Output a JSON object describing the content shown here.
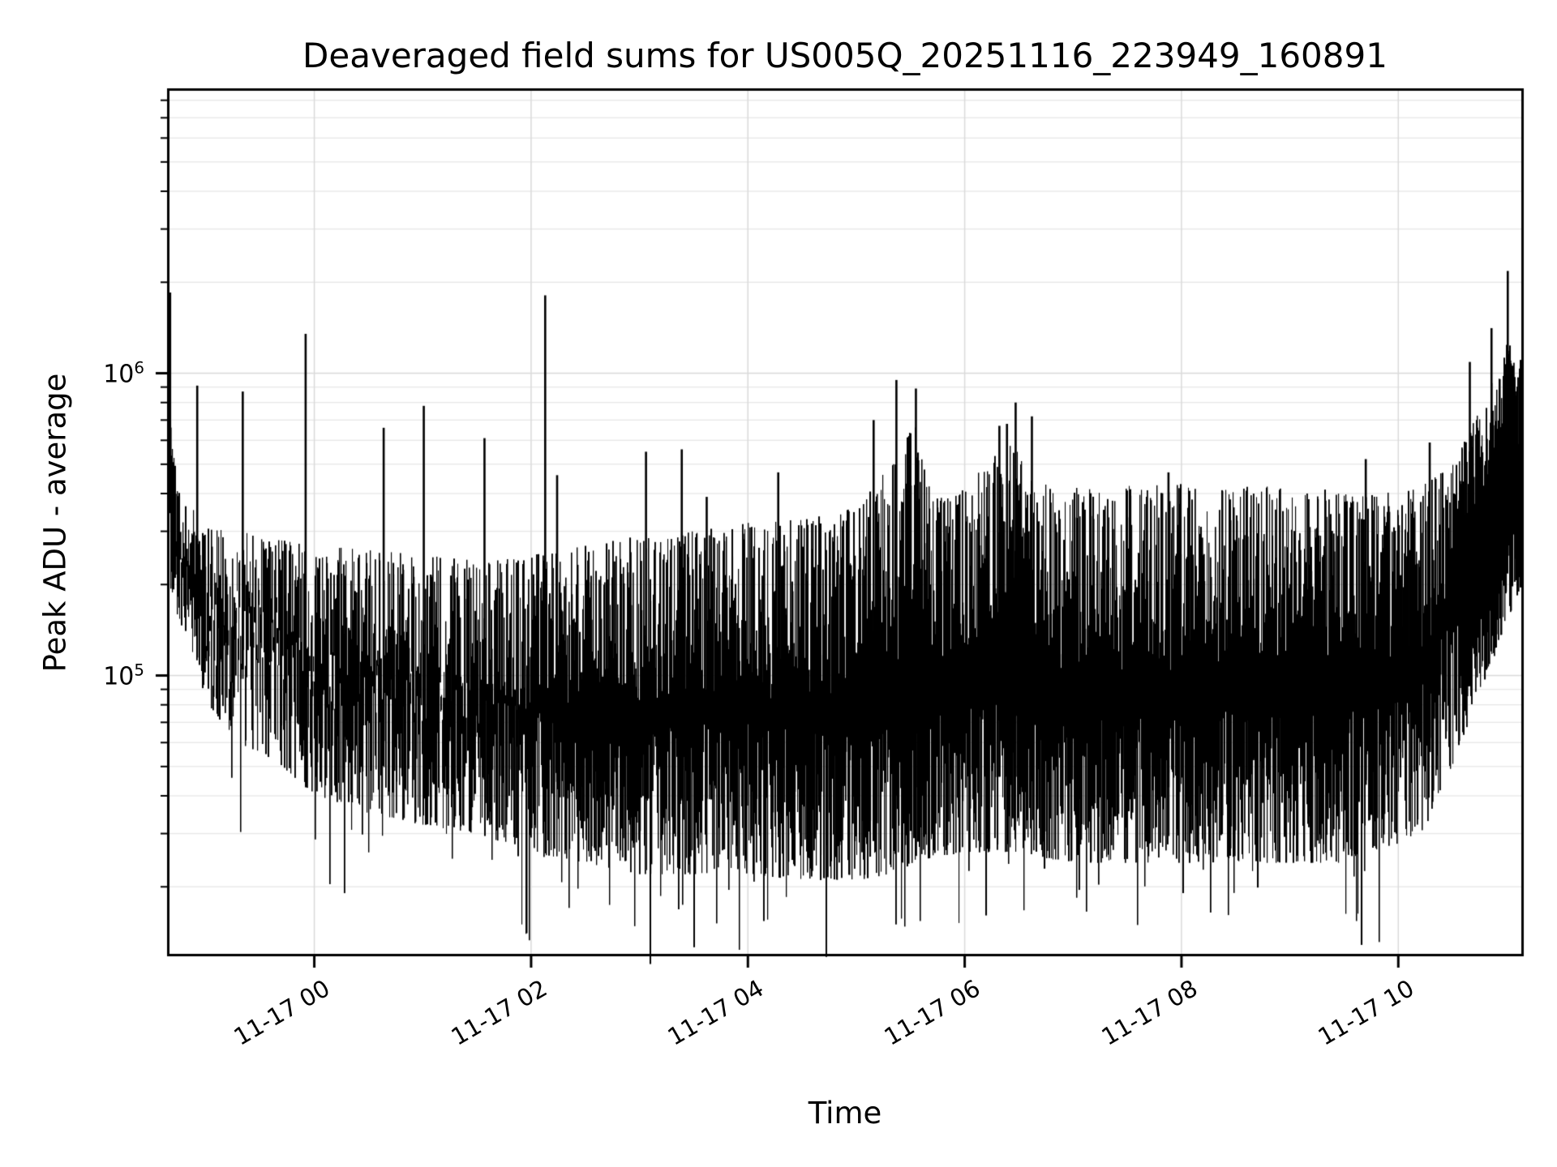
{
  "figure": {
    "background": "#ffffff",
    "text_color": "#000000"
  },
  "chart": {
    "title": "Deaveraged field sums for US005Q_20251116_223949_160891",
    "xlabel": "Time",
    "ylabel": "Peak ADU - average"
  },
  "chart_data": {
    "type": "line",
    "title": "Deaveraged field sums for US005Q_20251116_223949_160891",
    "xlabel": "Time",
    "ylabel": "Peak ADU - average",
    "legend": "none",
    "grid": {
      "major_color": "#dadada",
      "minor_color": "#e7e7e7",
      "which": "both"
    },
    "series_color": "#000000",
    "x_axis": {
      "unit": "hours relative to 11-17 00:00",
      "range_hours": [
        -1.336,
        11.135
      ],
      "ticks": [
        {
          "hour": 0,
          "label": "11-17 00"
        },
        {
          "hour": 2,
          "label": "11-17 02"
        },
        {
          "hour": 4,
          "label": "11-17 04"
        },
        {
          "hour": 6,
          "label": "11-17 06"
        },
        {
          "hour": 8,
          "label": "11-17 08"
        },
        {
          "hour": 10,
          "label": "11-17 10"
        }
      ]
    },
    "y_axis": {
      "scale": "log",
      "range": [
        12000,
        8600000
      ],
      "major_ticks": [
        {
          "value": 100000,
          "base": "10",
          "exp": "5"
        },
        {
          "value": 1000000,
          "base": "10",
          "exp": "6"
        }
      ]
    },
    "envelope_hour_top_bottom": [
      [
        -1.34,
        700000,
        200000
      ],
      [
        -1.25,
        450000,
        150000
      ],
      [
        -1.1,
        350000,
        110000
      ],
      [
        -1.0,
        320000,
        80000
      ],
      [
        -0.7,
        300000,
        60000
      ],
      [
        -0.3,
        280000,
        50000
      ],
      [
        0.0,
        270000,
        40000
      ],
      [
        0.5,
        260000,
        35000
      ],
      [
        1.0,
        250000,
        32000
      ],
      [
        1.5,
        240000,
        30000
      ],
      [
        2.0,
        250000,
        26000
      ],
      [
        2.5,
        270000,
        24000
      ],
      [
        3.0,
        290000,
        22000
      ],
      [
        3.5,
        300000,
        22000
      ],
      [
        4.0,
        320000,
        22000
      ],
      [
        4.5,
        330000,
        21000
      ],
      [
        5.0,
        360000,
        21000
      ],
      [
        5.3,
        500000,
        22000
      ],
      [
        5.55,
        700000,
        24000
      ],
      [
        5.7,
        380000,
        25000
      ],
      [
        6.0,
        420000,
        26000
      ],
      [
        6.3,
        550000,
        26000
      ],
      [
        6.5,
        600000,
        26000
      ],
      [
        6.7,
        430000,
        25000
      ],
      [
        7.0,
        420000,
        24000
      ],
      [
        8.0,
        430000,
        24000
      ],
      [
        9.0,
        420000,
        24000
      ],
      [
        9.5,
        410000,
        24000
      ],
      [
        9.8,
        400000,
        26000
      ],
      [
        10.2,
        420000,
        30000
      ],
      [
        10.5,
        500000,
        50000
      ],
      [
        10.7,
        700000,
        80000
      ],
      [
        10.9,
        1000000,
        120000
      ],
      [
        11.0,
        1300000,
        150000
      ],
      [
        11.13,
        1100000,
        200000
      ]
    ],
    "spikes_hour_value": [
      [
        -1.33,
        1850000
      ],
      [
        -1.08,
        910000
      ],
      [
        -0.66,
        870000
      ],
      [
        -0.08,
        1350000
      ],
      [
        0.64,
        660000
      ],
      [
        1.01,
        780000
      ],
      [
        1.57,
        610000
      ],
      [
        2.13,
        1810000
      ],
      [
        2.24,
        460000
      ],
      [
        3.06,
        550000
      ],
      [
        3.39,
        560000
      ],
      [
        3.62,
        390000
      ],
      [
        4.28,
        470000
      ],
      [
        5.16,
        700000
      ],
      [
        5.37,
        950000
      ],
      [
        5.55,
        890000
      ],
      [
        6.32,
        670000
      ],
      [
        6.39,
        680000
      ],
      [
        6.47,
        800000
      ],
      [
        6.62,
        720000
      ],
      [
        7.88,
        470000
      ],
      [
        9.7,
        520000
      ],
      [
        10.29,
        590000
      ],
      [
        10.66,
        1090000
      ],
      [
        10.86,
        1410000
      ],
      [
        11.01,
        2180000
      ]
    ],
    "noise_seed": 7
  }
}
